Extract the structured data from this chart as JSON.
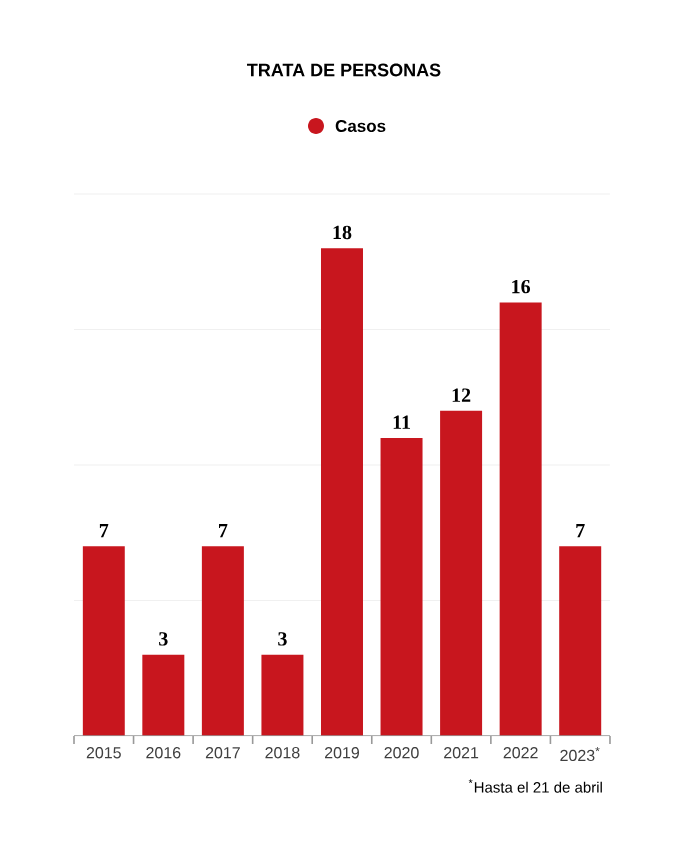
{
  "chart_data": {
    "type": "bar",
    "title": "TRATA DE PERSONAS",
    "categories": [
      "2015",
      "2016",
      "2017",
      "2018",
      "2019",
      "2020",
      "2021",
      "2022",
      "2023$^{*}$"
    ],
    "series": [
      {
        "name": "Casos",
        "color": "#c8161e",
        "values": [
          7,
          3,
          7,
          3,
          18,
          11,
          12,
          16,
          7
        ]
      }
    ],
    "ylim": [
      0,
      20
    ],
    "yticks": [
      0,
      5,
      10,
      15,
      20
    ],
    "grid": "y",
    "tick_labels": "x",
    "data_labels": true,
    "legend": "top",
    "annotations": [
      "$^{*}$Hasta el 21 de abril"
    ]
  }
}
